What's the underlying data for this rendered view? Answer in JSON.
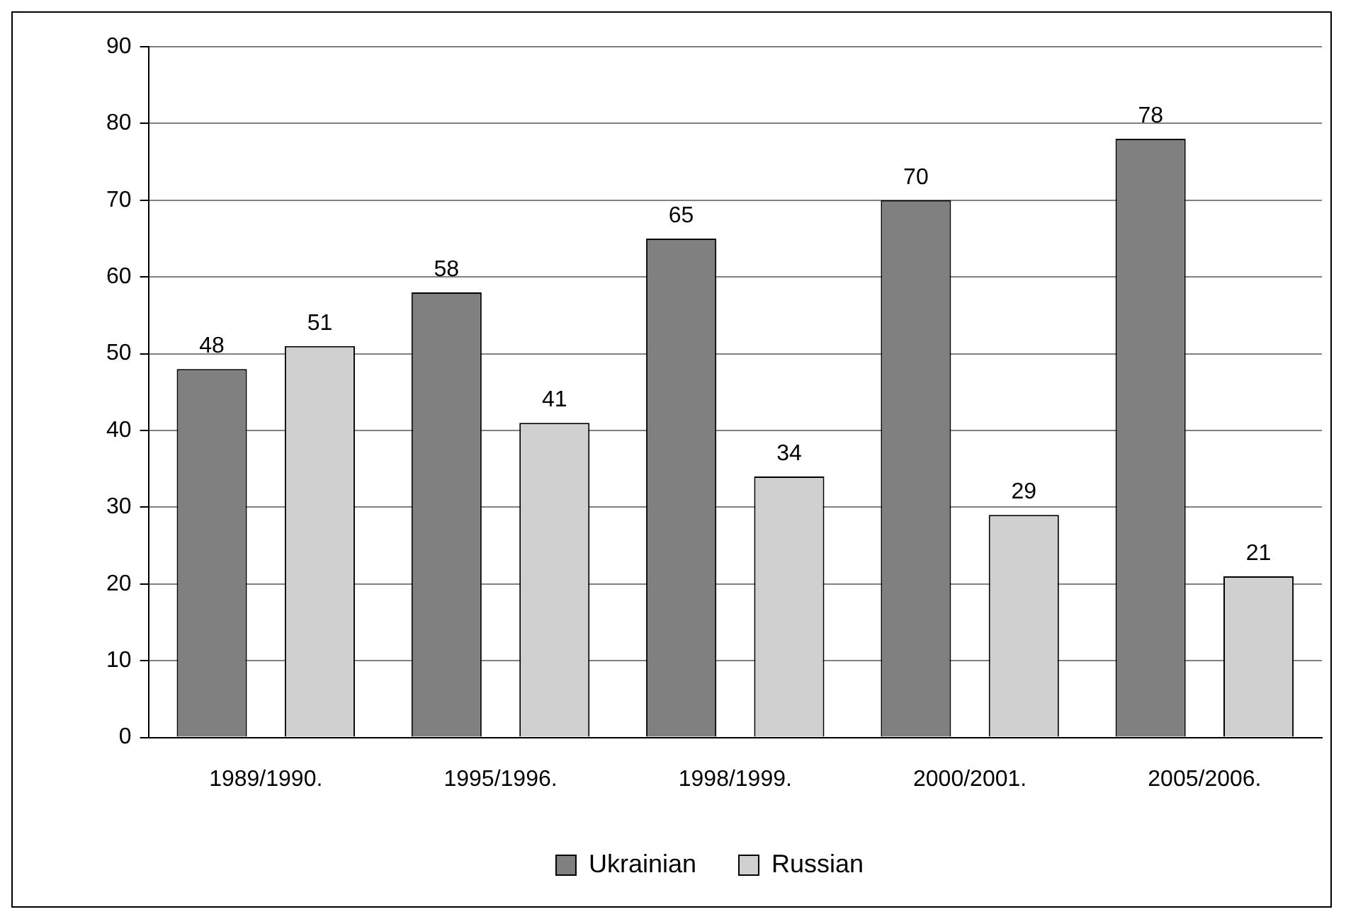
{
  "chart_data": {
    "type": "bar",
    "categories": [
      "1989/1990.",
      "1995/1996.",
      "1998/1999.",
      "2000/2001.",
      "2005/2006."
    ],
    "series": [
      {
        "name": "Ukrainian",
        "color": "#808080",
        "values": [
          48,
          58,
          65,
          70,
          78
        ]
      },
      {
        "name": "Russian",
        "color": "#d0d0d0",
        "values": [
          51,
          41,
          34,
          29,
          21
        ]
      }
    ],
    "ylim": [
      0,
      90
    ],
    "yticks": [
      0,
      10,
      20,
      30,
      40,
      50,
      60,
      70,
      80,
      90
    ],
    "grid": "y",
    "legend": "bottom",
    "data_labels": true
  }
}
